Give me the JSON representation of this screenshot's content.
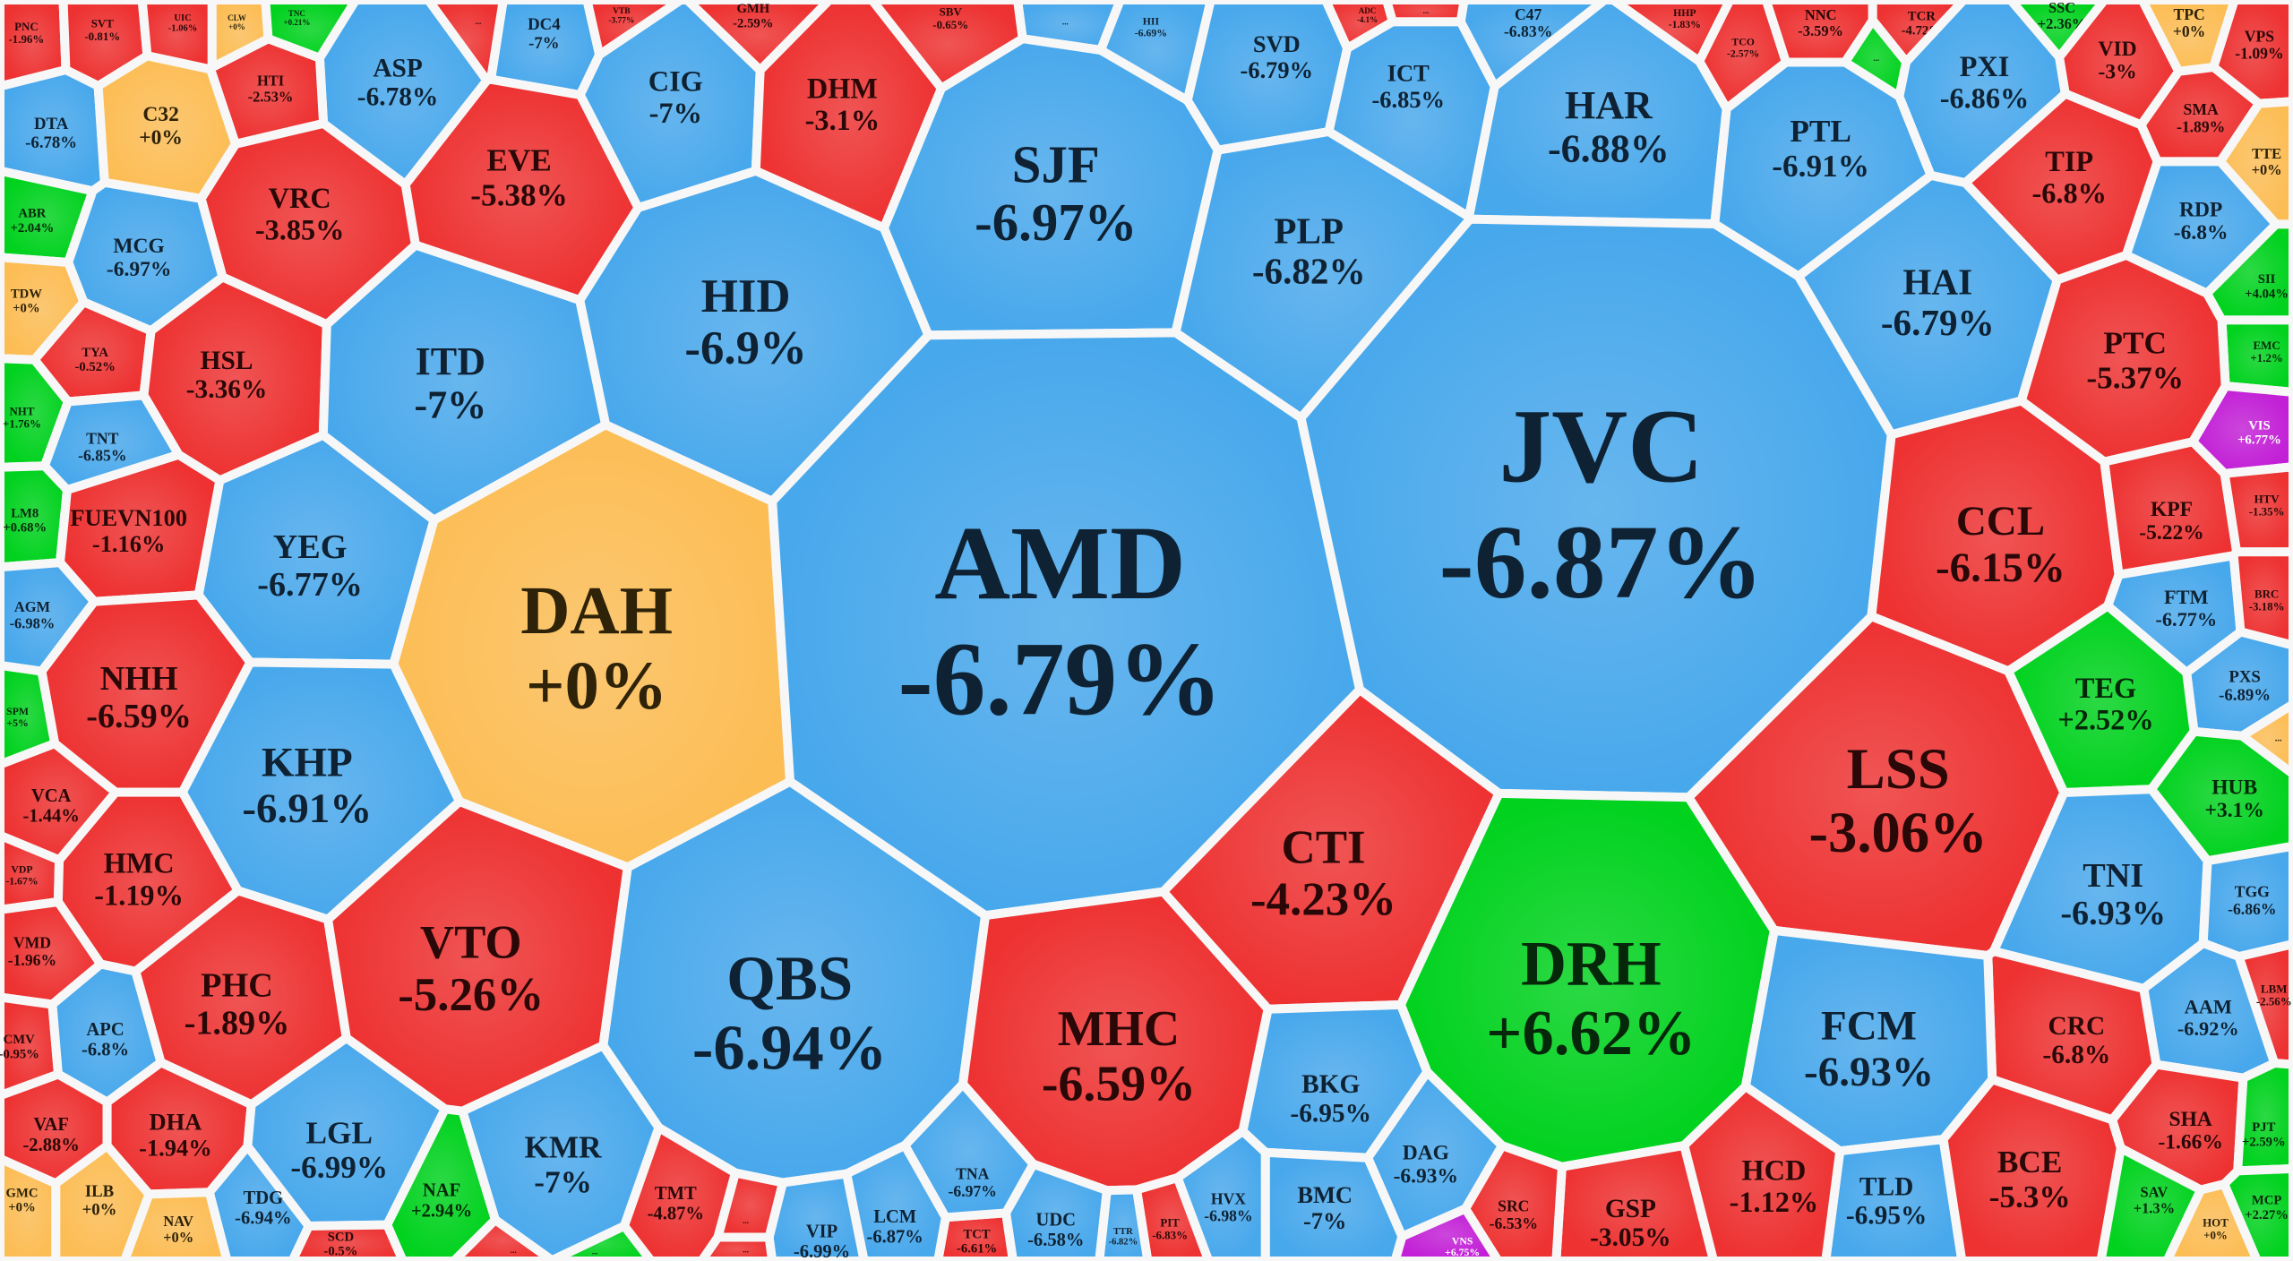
{
  "palette": {
    "down": "#ee3131",
    "floor": "#48a8ec",
    "up": "#00d21e",
    "flat": "#fcbd55",
    "ceiling": "#c21fd6"
  },
  "text_colors": {
    "down": "#2a0808",
    "floor": "#0f2233",
    "up": "#06280a",
    "flat": "#2e2208",
    "ceiling": "#ffffff"
  },
  "cells": [
    {
      "t": "PNC",
      "c": "-1.96%",
      "k": "down"
    },
    {
      "t": "SVT",
      "c": "-0.81%",
      "k": "down"
    },
    {
      "t": "UIC",
      "c": "-1.06%",
      "k": "down"
    },
    {
      "t": "CLW",
      "c": "+0%",
      "k": "flat"
    },
    {
      "t": "TNC",
      "c": "+0.21%",
      "k": "up"
    },
    {
      "t": "ASP",
      "c": "-6.78%",
      "k": "floor"
    },
    {
      "t": "DC4",
      "c": "-7%",
      "k": "floor"
    },
    {
      "t": "CIG",
      "c": "-7%",
      "k": "floor"
    },
    {
      "t": "GMH",
      "c": "-2.59%",
      "k": "down"
    },
    {
      "t": "DHM",
      "c": "-3.1%",
      "k": "down"
    },
    {
      "t": "SBV",
      "c": "-0.65%",
      "k": "down"
    },
    {
      "t": "...",
      "c": "",
      "k": "floor"
    },
    {
      "t": "HII",
      "c": "-6.69%",
      "k": "floor"
    },
    {
      "t": "SVD",
      "c": "-6.79%",
      "k": "floor"
    },
    {
      "t": "ICT",
      "c": "-6.85%",
      "k": "floor"
    },
    {
      "t": "C47",
      "c": "-6.83%",
      "k": "floor"
    },
    {
      "t": "HAR",
      "c": "-6.88%",
      "k": "floor"
    },
    {
      "t": "HHP",
      "c": "-1.83%",
      "k": "down"
    },
    {
      "t": "TCO",
      "c": "-2.57%",
      "k": "down"
    },
    {
      "t": "NNC",
      "c": "-3.59%",
      "k": "down"
    },
    {
      "t": "TCR",
      "c": "-4.72%",
      "k": "down"
    },
    {
      "t": "PXI",
      "c": "-6.86%",
      "k": "floor"
    },
    {
      "t": "SSC",
      "c": "+2.36%",
      "k": "up"
    },
    {
      "t": "VID",
      "c": "-3%",
      "k": "down"
    },
    {
      "t": "TPC",
      "c": "+0%",
      "k": "flat"
    },
    {
      "t": "VPS",
      "c": "-1.09%",
      "k": "down"
    },
    {
      "t": "...",
      "c": "",
      "k": "down"
    },
    {
      "t": "VTB",
      "c": "-3.77%",
      "k": "down"
    },
    {
      "t": "ADC",
      "c": "-4.1%",
      "k": "down"
    },
    {
      "t": "...",
      "c": "",
      "k": "down"
    },
    {
      "t": "...",
      "c": "",
      "k": "up"
    },
    {
      "t": "DTA",
      "c": "-6.78%",
      "k": "floor"
    },
    {
      "t": "C32",
      "c": "+0%",
      "k": "flat"
    },
    {
      "t": "HTI",
      "c": "-2.53%",
      "k": "down"
    },
    {
      "t": "EVE",
      "c": "-5.38%",
      "k": "down"
    },
    {
      "t": "VRC",
      "c": "-3.85%",
      "k": "down"
    },
    {
      "t": "ABR",
      "c": "+2.04%",
      "k": "up"
    },
    {
      "t": "MCG",
      "c": "-6.97%",
      "k": "floor"
    },
    {
      "t": "TDW",
      "c": "+0%",
      "k": "flat"
    },
    {
      "t": "TYA",
      "c": "-0.52%",
      "k": "down"
    },
    {
      "t": "HSL",
      "c": "-3.36%",
      "k": "down"
    },
    {
      "t": "ITD",
      "c": "-7%",
      "k": "floor"
    },
    {
      "t": "HID",
      "c": "-6.9%",
      "k": "floor"
    },
    {
      "t": "SJF",
      "c": "-6.97%",
      "k": "floor"
    },
    {
      "t": "PLP",
      "c": "-6.82%",
      "k": "floor"
    },
    {
      "t": "PTL",
      "c": "-6.91%",
      "k": "floor"
    },
    {
      "t": "HAI",
      "c": "-6.79%",
      "k": "floor"
    },
    {
      "t": "TIP",
      "c": "-6.8%",
      "k": "down"
    },
    {
      "t": "SMA",
      "c": "-1.89%",
      "k": "down"
    },
    {
      "t": "TTE",
      "c": "+0%",
      "k": "flat"
    },
    {
      "t": "RDP",
      "c": "-6.8%",
      "k": "floor"
    },
    {
      "t": "SII",
      "c": "+4.04%",
      "k": "up"
    },
    {
      "t": "EMC",
      "c": "+1.2%",
      "k": "up"
    },
    {
      "t": "VIS",
      "c": "+6.77%",
      "k": "ceiling"
    },
    {
      "t": "PTC",
      "c": "-5.37%",
      "k": "down"
    },
    {
      "t": "NHT",
      "c": "+1.76%",
      "k": "up"
    },
    {
      "t": "TNT",
      "c": "-6.85%",
      "k": "floor"
    },
    {
      "t": "LM8",
      "c": "+0.68%",
      "k": "up"
    },
    {
      "t": "FUEVN100",
      "c": "-1.16%",
      "k": "down"
    },
    {
      "t": "AGM",
      "c": "-6.98%",
      "k": "floor"
    },
    {
      "t": "YEG",
      "c": "-6.77%",
      "k": "floor"
    },
    {
      "t": "DAH",
      "c": "+0%",
      "k": "flat"
    },
    {
      "t": "AMD",
      "c": "-6.79%",
      "k": "floor"
    },
    {
      "t": "JVC",
      "c": "-6.87%",
      "k": "floor"
    },
    {
      "t": "CCL",
      "c": "-6.15%",
      "k": "down"
    },
    {
      "t": "KPF",
      "c": "-5.22%",
      "k": "down"
    },
    {
      "t": "HTV",
      "c": "-1.35%",
      "k": "down"
    },
    {
      "t": "FTM",
      "c": "-6.77%",
      "k": "floor"
    },
    {
      "t": "BRC",
      "c": "-3.18%",
      "k": "down"
    },
    {
      "t": "PXS",
      "c": "-6.89%",
      "k": "floor"
    },
    {
      "t": "...",
      "c": "",
      "k": "flat"
    },
    {
      "t": "TEG",
      "c": "+2.52%",
      "k": "up"
    },
    {
      "t": "HUB",
      "c": "+3.1%",
      "k": "up"
    },
    {
      "t": "NHH",
      "c": "-6.59%",
      "k": "down"
    },
    {
      "t": "SPM",
      "c": "+5%",
      "k": "up"
    },
    {
      "t": "VCA",
      "c": "-1.44%",
      "k": "down"
    },
    {
      "t": "VDP",
      "c": "-1.67%",
      "k": "down"
    },
    {
      "t": "HMC",
      "c": "-1.19%",
      "k": "down"
    },
    {
      "t": "KHP",
      "c": "-6.91%",
      "k": "floor"
    },
    {
      "t": "VMD",
      "c": "-1.96%",
      "k": "down"
    },
    {
      "t": "CMV",
      "c": "-0.95%",
      "k": "down"
    },
    {
      "t": "APC",
      "c": "-6.8%",
      "k": "floor"
    },
    {
      "t": "PHC",
      "c": "-1.89%",
      "k": "down"
    },
    {
      "t": "VTO",
      "c": "-5.26%",
      "k": "down"
    },
    {
      "t": "QBS",
      "c": "-6.94%",
      "k": "floor"
    },
    {
      "t": "CTI",
      "c": "-4.23%",
      "k": "down"
    },
    {
      "t": "DRH",
      "c": "+6.62%",
      "k": "up"
    },
    {
      "t": "LSS",
      "c": "-3.06%",
      "k": "down"
    },
    {
      "t": "TNI",
      "c": "-6.93%",
      "k": "floor"
    },
    {
      "t": "TGG",
      "c": "-6.86%",
      "k": "floor"
    },
    {
      "t": "AAM",
      "c": "-6.92%",
      "k": "floor"
    },
    {
      "t": "LBM",
      "c": "-2.56%",
      "k": "down"
    },
    {
      "t": "CRC",
      "c": "-6.8%",
      "k": "down"
    },
    {
      "t": "FCM",
      "c": "-6.93%",
      "k": "floor"
    },
    {
      "t": "MHC",
      "c": "-6.59%",
      "k": "down"
    },
    {
      "t": "VAF",
      "c": "-2.88%",
      "k": "down"
    },
    {
      "t": "DHA",
      "c": "-1.94%",
      "k": "down"
    },
    {
      "t": "LGL",
      "c": "-6.99%",
      "k": "floor"
    },
    {
      "t": "KMR",
      "c": "-7%",
      "k": "floor"
    },
    {
      "t": "BKG",
      "c": "-6.95%",
      "k": "floor"
    },
    {
      "t": "SHA",
      "c": "-1.66%",
      "k": "down"
    },
    {
      "t": "PJT",
      "c": "+2.59%",
      "k": "up"
    },
    {
      "t": "BCE",
      "c": "-5.3%",
      "k": "down"
    },
    {
      "t": "SAV",
      "c": "+1.3%",
      "k": "up"
    },
    {
      "t": "MCP",
      "c": "+2.27%",
      "k": "up"
    },
    {
      "t": "HOT",
      "c": "+0%",
      "k": "flat"
    },
    {
      "t": "TLD",
      "c": "-6.95%",
      "k": "floor"
    },
    {
      "t": "HCD",
      "c": "-1.12%",
      "k": "down"
    },
    {
      "t": "GSP",
      "c": "-3.05%",
      "k": "down"
    },
    {
      "t": "SRC",
      "c": "-6.53%",
      "k": "down"
    },
    {
      "t": "VNS",
      "c": "+6.75%",
      "k": "ceiling"
    },
    {
      "t": "DAG",
      "c": "-6.93%",
      "k": "floor"
    },
    {
      "t": "BMC",
      "c": "-7%",
      "k": "floor"
    },
    {
      "t": "HVX",
      "c": "-6.98%",
      "k": "floor"
    },
    {
      "t": "PIT",
      "c": "-6.83%",
      "k": "down"
    },
    {
      "t": "TTR",
      "c": "-6.82%",
      "k": "floor"
    },
    {
      "t": "UDC",
      "c": "-6.58%",
      "k": "floor"
    },
    {
      "t": "TCT",
      "c": "-6.61%",
      "k": "down"
    },
    {
      "t": "LCM",
      "c": "-6.87%",
      "k": "floor"
    },
    {
      "t": "TNA",
      "c": "-6.97%",
      "k": "floor"
    },
    {
      "t": "VIP",
      "c": "-6.99%",
      "k": "floor"
    },
    {
      "t": "...",
      "c": "",
      "k": "down"
    },
    {
      "t": "...",
      "c": "",
      "k": "down"
    },
    {
      "t": "TMT",
      "c": "-4.87%",
      "k": "down"
    },
    {
      "t": "NAF",
      "c": "+2.94%",
      "k": "up"
    },
    {
      "t": "SCD",
      "c": "-0.5%",
      "k": "down"
    },
    {
      "t": "TDG",
      "c": "-6.94%",
      "k": "floor"
    },
    {
      "t": "NAV",
      "c": "+0%",
      "k": "flat"
    },
    {
      "t": "ILB",
      "c": "+0%",
      "k": "flat"
    },
    {
      "t": "GMC",
      "c": "+0%",
      "k": "flat"
    },
    {
      "t": "...",
      "c": "",
      "k": "up"
    },
    {
      "t": "...",
      "c": "",
      "k": "down"
    }
  ]
}
